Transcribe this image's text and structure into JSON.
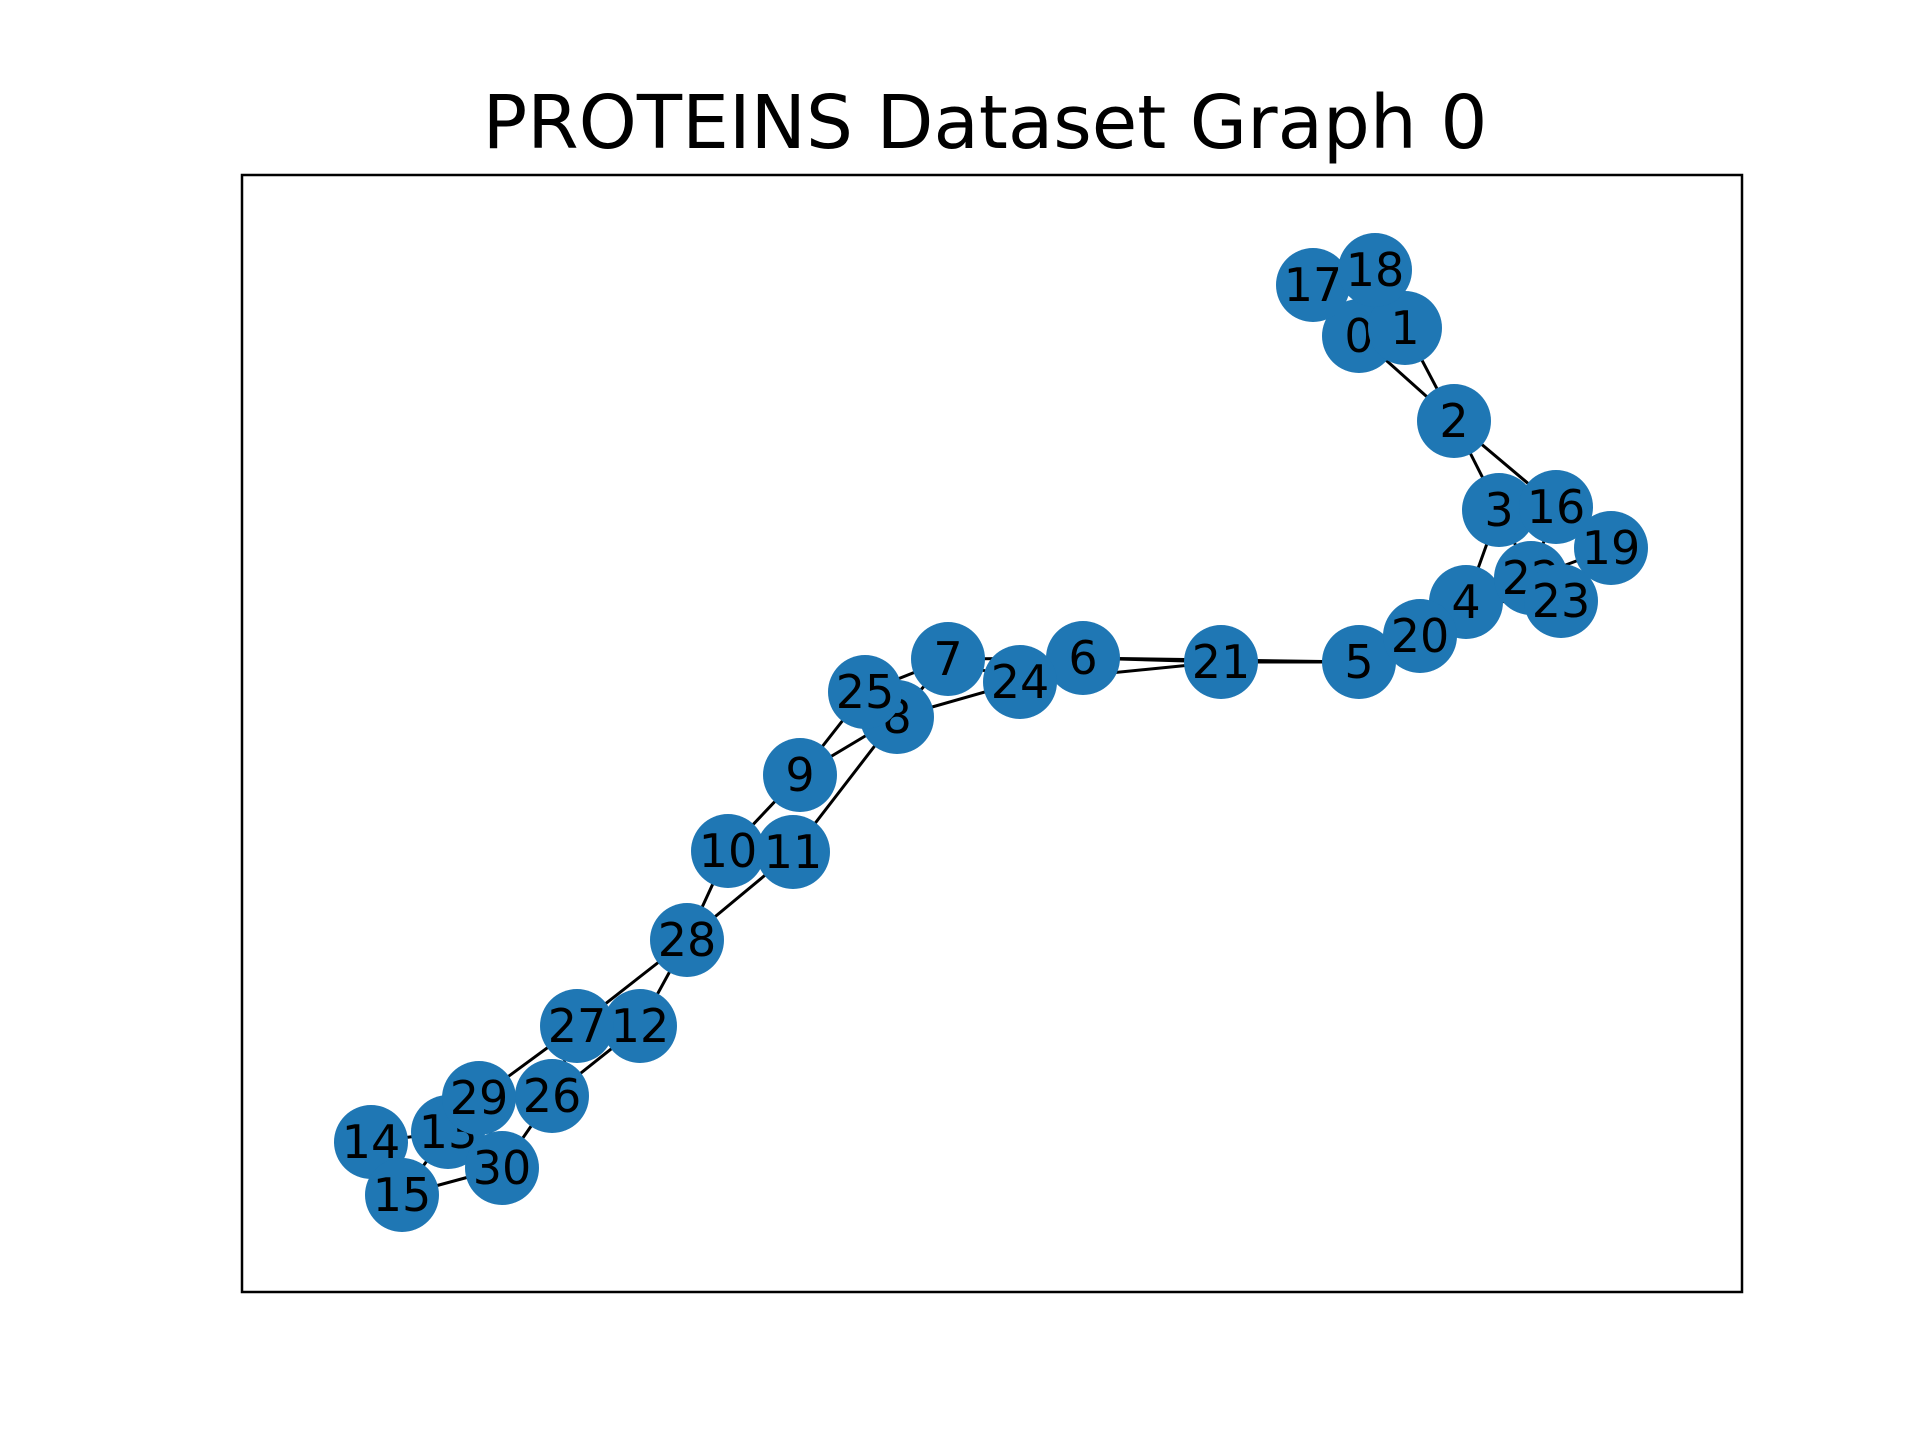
{
  "title": "PROTEINS Dataset Graph 0",
  "colors": {
    "node": "#1f77b4",
    "edge": "#000000",
    "background": "#ffffff",
    "frame": "#000000"
  },
  "graph": {
    "nodes": [
      {
        "id": 0,
        "label": "0"
      },
      {
        "id": 1,
        "label": "1"
      },
      {
        "id": 2,
        "label": "2"
      },
      {
        "id": 3,
        "label": "3"
      },
      {
        "id": 4,
        "label": "4"
      },
      {
        "id": 5,
        "label": "5"
      },
      {
        "id": 6,
        "label": "6"
      },
      {
        "id": 7,
        "label": "7"
      },
      {
        "id": 8,
        "label": "8"
      },
      {
        "id": 9,
        "label": "9"
      },
      {
        "id": 10,
        "label": "10"
      },
      {
        "id": 11,
        "label": "11"
      },
      {
        "id": 12,
        "label": "12"
      },
      {
        "id": 13,
        "label": "13"
      },
      {
        "id": 14,
        "label": "14"
      },
      {
        "id": 15,
        "label": "15"
      },
      {
        "id": 16,
        "label": "16"
      },
      {
        "id": 17,
        "label": "17"
      },
      {
        "id": 18,
        "label": "18"
      },
      {
        "id": 19,
        "label": "19"
      },
      {
        "id": 20,
        "label": "20"
      },
      {
        "id": 21,
        "label": "21"
      },
      {
        "id": 22,
        "label": "22"
      },
      {
        "id": 23,
        "label": "23"
      },
      {
        "id": 24,
        "label": "24"
      },
      {
        "id": 25,
        "label": "25"
      },
      {
        "id": 26,
        "label": "26"
      },
      {
        "id": 27,
        "label": "27"
      },
      {
        "id": 28,
        "label": "28"
      },
      {
        "id": 29,
        "label": "29"
      },
      {
        "id": 30,
        "label": "30"
      }
    ],
    "edges": [
      [
        0,
        1
      ],
      [
        0,
        17
      ],
      [
        0,
        18
      ],
      [
        0,
        2
      ],
      [
        1,
        2
      ],
      [
        1,
        18
      ],
      [
        17,
        18
      ],
      [
        2,
        3
      ],
      [
        2,
        16
      ],
      [
        3,
        16
      ],
      [
        3,
        4
      ],
      [
        3,
        22
      ],
      [
        16,
        19
      ],
      [
        16,
        22
      ],
      [
        19,
        22
      ],
      [
        19,
        23
      ],
      [
        4,
        22
      ],
      [
        4,
        23
      ],
      [
        4,
        20
      ],
      [
        22,
        23
      ],
      [
        20,
        5
      ],
      [
        4,
        5
      ],
      [
        5,
        21
      ],
      [
        5,
        6
      ],
      [
        21,
        6
      ],
      [
        21,
        24
      ],
      [
        6,
        24
      ],
      [
        6,
        7
      ],
      [
        24,
        7
      ],
      [
        24,
        8
      ],
      [
        7,
        25
      ],
      [
        7,
        8
      ],
      [
        25,
        8
      ],
      [
        25,
        9
      ],
      [
        8,
        9
      ],
      [
        8,
        11
      ],
      [
        9,
        10
      ],
      [
        10,
        28
      ],
      [
        11,
        28
      ],
      [
        28,
        12
      ],
      [
        28,
        27
      ],
      [
        12,
        27
      ],
      [
        12,
        26
      ],
      [
        27,
        29
      ],
      [
        27,
        26
      ],
      [
        26,
        29
      ],
      [
        26,
        30
      ],
      [
        29,
        13
      ],
      [
        29,
        30
      ],
      [
        13,
        14
      ],
      [
        13,
        30
      ],
      [
        13,
        15
      ],
      [
        14,
        15
      ],
      [
        15,
        30
      ]
    ]
  }
}
